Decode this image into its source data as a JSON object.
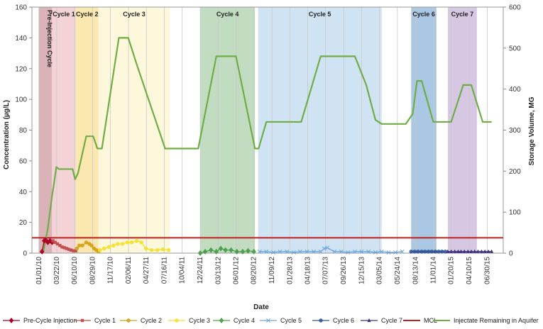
{
  "chart_data": {
    "type": "line",
    "title": "",
    "xlabel": "Date",
    "ylabel_left": "Concentration (µg/L)",
    "ylabel_right": "Storage Volume, MG",
    "ylim_left": [
      0,
      160
    ],
    "ylim_right": [
      0,
      600
    ],
    "yticks_left": [
      0,
      20,
      40,
      60,
      80,
      100,
      120,
      140,
      160
    ],
    "yticks_right": [
      0,
      100,
      200,
      300,
      400,
      500,
      600
    ],
    "x_tick_labels": [
      "01/01/10",
      "03/22/10",
      "06/10/10",
      "08/29/10",
      "11/17/10",
      "02/06/11",
      "04/27/11",
      "07/16/11",
      "10/04/11",
      "12/24/11",
      "03/13/12",
      "06/01/12",
      "08/20/12",
      "11/09/12",
      "01/28/13",
      "04/18/13",
      "07/07/13",
      "09/26/13",
      "12/15/13",
      "03/05/14",
      "05/24/14",
      "08/13/14",
      "11/01/14",
      "01/20/15",
      "04/10/15",
      "06/30/15"
    ],
    "xlim": [
      "2009-12-01",
      "2015-09-10"
    ],
    "mcl": 10,
    "bands": [
      {
        "label": "Pre-Injection Cycle",
        "start": "2010-01-01",
        "end": "2010-03-01",
        "color": "#d9b3b8"
      },
      {
        "label": "Cycle 1",
        "start": "2010-03-01",
        "end": "2010-06-15",
        "color": "#f3d3d6"
      },
      {
        "label": "Cycle 2",
        "start": "2010-06-15",
        "end": "2010-09-25",
        "color": "#fae8b0"
      },
      {
        "label": "Cycle 3",
        "start": "2010-09-25",
        "end": "2011-08-10",
        "color": "#fdf8dc"
      },
      {
        "label": "Cycle 4",
        "start": "2011-12-24",
        "end": "2012-08-25",
        "color": "#c2dcc2"
      },
      {
        "label": "Cycle 5",
        "start": "2012-09-08",
        "end": "2014-03-15",
        "color": "#cfe3f3"
      },
      {
        "label": "Cycle 6",
        "start": "2014-07-25",
        "end": "2014-11-15",
        "color": "#aac7e3"
      },
      {
        "label": "Cycle 7",
        "start": "2015-01-05",
        "end": "2015-05-15",
        "color": "#d6c7e3"
      }
    ],
    "storage_series": {
      "name": "Injectate Remaining in Aquifer",
      "color": "#70ad47",
      "x": [
        "2010-01-20",
        "2010-02-10",
        "2010-03-01",
        "2010-03-10",
        "2010-03-20",
        "2010-04-01",
        "2010-06-01",
        "2010-06-12",
        "2010-06-25",
        "2010-08-01",
        "2010-09-01",
        "2010-09-20",
        "2010-10-10",
        "2010-12-25",
        "2011-02-05",
        "2011-03-15",
        "2011-07-20",
        "2011-12-15",
        "2012-03-05",
        "2012-06-01",
        "2012-08-25",
        "2012-09-10",
        "2012-10-15",
        "2013-03-20",
        "2013-06-15",
        "2013-11-15",
        "2014-01-05",
        "2014-02-15",
        "2014-03-15",
        "2014-07-01",
        "2014-08-01",
        "2014-08-20",
        "2014-09-10",
        "2014-11-01",
        "2015-01-20",
        "2015-03-15",
        "2015-04-20",
        "2015-06-10",
        "2015-07-20"
      ],
      "y": [
        0,
        60,
        140,
        170,
        210,
        205,
        205,
        180,
        195,
        285,
        285,
        255,
        255,
        525,
        525,
        460,
        255,
        255,
        480,
        480,
        255,
        255,
        320,
        320,
        480,
        480,
        410,
        325,
        315,
        315,
        340,
        420,
        420,
        320,
        320,
        410,
        410,
        320,
        320
      ]
    },
    "series": [
      {
        "name": "Pre-Cycle Injection",
        "color": "#b0002a",
        "marker": "diamond",
        "x": [
          "2010-01-15",
          "2010-01-25",
          "2010-02-01",
          "2010-02-10",
          "2010-02-20",
          "2010-03-01"
        ],
        "y": [
          1,
          8,
          8.5,
          7,
          8,
          7
        ]
      },
      {
        "name": "Cycle 1",
        "color": "#c0504d",
        "marker": "square",
        "x": [
          "2010-03-05",
          "2010-03-15",
          "2010-03-25",
          "2010-04-05",
          "2010-04-15",
          "2010-04-25",
          "2010-05-05",
          "2010-05-15",
          "2010-05-25",
          "2010-06-05",
          "2010-06-15"
        ],
        "y": [
          8,
          7,
          6,
          5,
          4,
          3.5,
          3,
          2.5,
          2,
          1.5,
          1.5
        ]
      },
      {
        "name": "Cycle 2",
        "color": "#d4a017",
        "marker": "circle",
        "x": [
          "2010-06-20",
          "2010-07-01",
          "2010-07-15",
          "2010-08-01",
          "2010-08-15",
          "2010-08-25",
          "2010-09-05",
          "2010-09-15",
          "2010-09-25"
        ],
        "y": [
          3,
          5,
          5,
          7,
          6,
          5,
          3,
          2,
          1
        ]
      },
      {
        "name": "Cycle 3",
        "color": "#f5e02a",
        "marker": "circle",
        "x": [
          "2010-10-01",
          "2010-10-20",
          "2010-11-10",
          "2010-12-01",
          "2010-12-20",
          "2011-01-10",
          "2011-02-01",
          "2011-02-20",
          "2011-03-15",
          "2011-04-05",
          "2011-04-25",
          "2011-05-20",
          "2011-06-15",
          "2011-07-10",
          "2011-08-05"
        ],
        "y": [
          2,
          3,
          4,
          5,
          6,
          6,
          7,
          7,
          8,
          7,
          3,
          2,
          2,
          2.5,
          2
        ]
      },
      {
        "name": "Cycle 4",
        "color": "#4ea24e",
        "marker": "diamond",
        "x": [
          "2011-12-24",
          "2012-01-15",
          "2012-02-10",
          "2012-03-05",
          "2012-03-25",
          "2012-04-15",
          "2012-05-10",
          "2012-06-05",
          "2012-07-01",
          "2012-07-25",
          "2012-08-20"
        ],
        "y": [
          0,
          1,
          2,
          1,
          3,
          2,
          2,
          1,
          1,
          1.5,
          1
        ]
      },
      {
        "name": "Cycle 5",
        "color": "#6fa8dc",
        "marker": "x",
        "x": [
          "2012-09-15",
          "2012-10-15",
          "2012-11-15",
          "2012-12-15",
          "2013-01-15",
          "2013-02-15",
          "2013-03-15",
          "2013-04-15",
          "2013-05-15",
          "2013-06-15",
          "2013-07-01",
          "2013-07-15",
          "2013-08-15",
          "2013-09-15",
          "2013-10-15",
          "2013-11-15",
          "2013-12-15",
          "2014-01-15",
          "2014-02-15",
          "2014-03-15",
          "2014-04-15",
          "2014-05-15",
          "2014-06-15"
        ],
        "y": [
          1,
          1,
          0.5,
          1,
          1,
          0.5,
          1,
          1,
          1,
          1,
          3,
          3.5,
          1,
          1,
          0.5,
          1,
          1,
          1,
          0.5,
          1,
          0.5,
          0.5,
          1
        ]
      },
      {
        "name": "Cycle 6",
        "color": "#2f5597",
        "marker": "circle",
        "x": [
          "2014-07-25",
          "2014-08-10",
          "2014-08-25",
          "2014-09-10",
          "2014-09-25",
          "2014-10-10",
          "2014-10-25",
          "2014-11-10",
          "2014-11-25",
          "2014-12-10",
          "2014-12-25"
        ],
        "y": [
          1,
          1,
          1,
          1,
          1,
          1,
          1,
          1,
          1,
          1,
          1
        ]
      },
      {
        "name": "Cycle 7",
        "color": "#403080",
        "marker": "triangle",
        "x": [
          "2015-01-05",
          "2015-01-20",
          "2015-02-05",
          "2015-02-20",
          "2015-03-05",
          "2015-03-20",
          "2015-04-05",
          "2015-04-20",
          "2015-05-05",
          "2015-05-20",
          "2015-06-05",
          "2015-06-20",
          "2015-07-05",
          "2015-07-20"
        ],
        "y": [
          1,
          1,
          1,
          1,
          1,
          1,
          1,
          1,
          1,
          1,
          1,
          1,
          1,
          1
        ]
      }
    ],
    "legend": [
      "Pre-Cycle Injection",
      "Cycle 1",
      "Cycle 2",
      "Cycle 3",
      "Cycle 4",
      "Cycle 5",
      "Cycle 6",
      "Cycle 7",
      "MCL",
      "Injectate Remaining in Aquifer"
    ],
    "legend_position": "bottom",
    "grid": "vertical"
  }
}
